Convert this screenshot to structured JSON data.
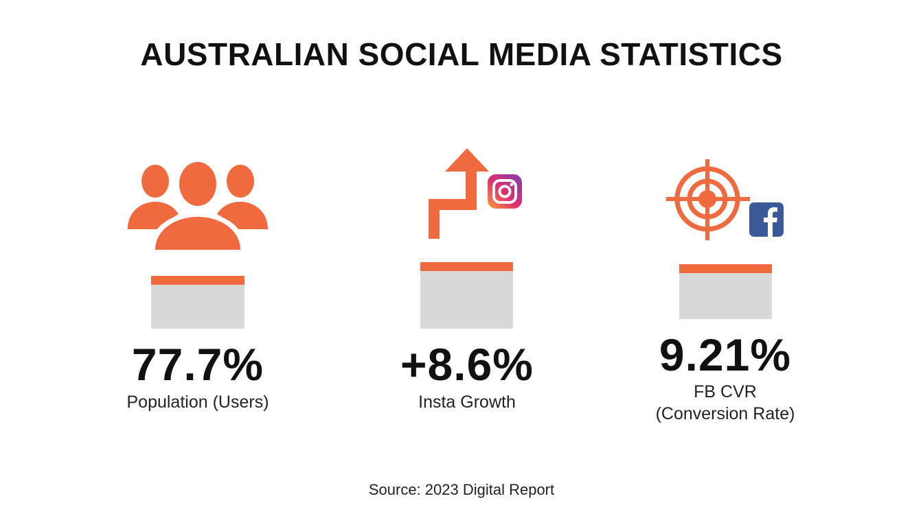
{
  "title": "AUSTRALIAN SOCIAL MEDIA STATISTICS",
  "accent_color": "#f06a3f",
  "bar_color": "#d9d9d9",
  "stats": [
    {
      "icon": "users-group-icon",
      "value": "77.7%",
      "label_lines": [
        "Population (Users)"
      ]
    },
    {
      "icon": "growth-arrow-icon",
      "badge_icon": "instagram-icon",
      "value": "+8.6%",
      "label_lines": [
        "Insta Growth"
      ]
    },
    {
      "icon": "target-icon",
      "badge_icon": "facebook-icon",
      "value": "9.21%",
      "label_lines": [
        "FB CVR",
        "(Conversion Rate)"
      ]
    }
  ],
  "source": "Source: 2023 Digital Report"
}
